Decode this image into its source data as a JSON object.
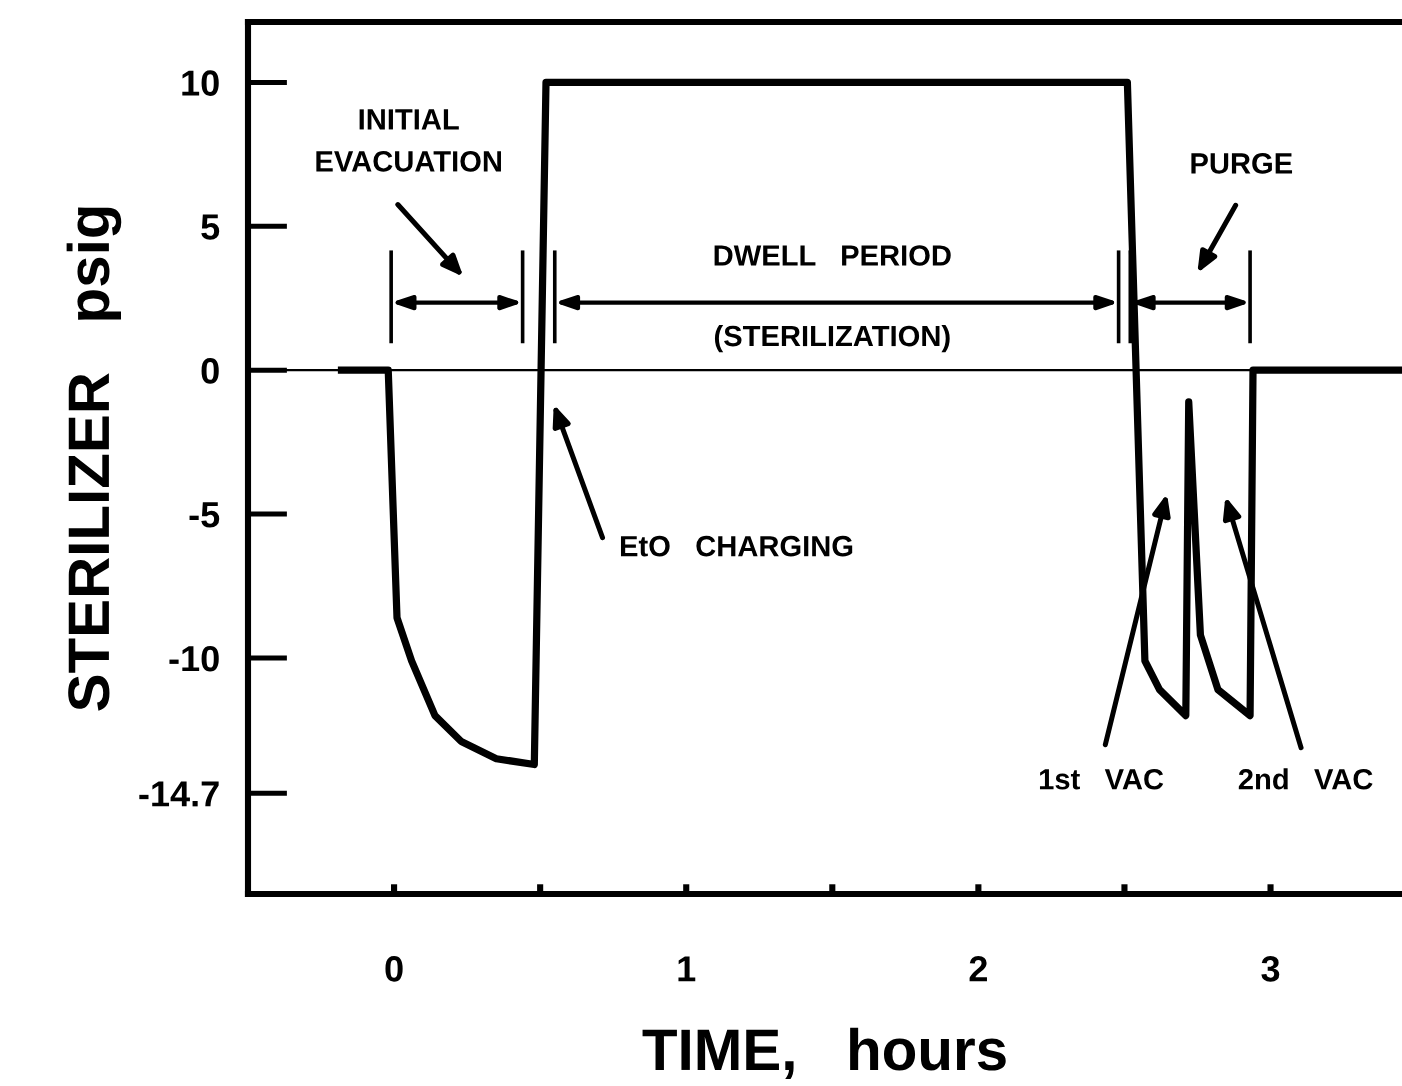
{
  "chart_data": {
    "type": "line",
    "xlabel": "TIME,   hours",
    "ylabel": "STERILIZER   psig",
    "x": [
      -0.18,
      -0.02,
      0.01,
      0.06,
      0.14,
      0.23,
      0.35,
      0.48,
      0.52,
      2.51,
      2.57,
      2.62,
      2.71,
      2.72,
      2.76,
      2.82,
      2.93,
      2.94,
      3.45
    ],
    "series": [
      {
        "color": "#000000",
        "values": [
          0,
          0,
          -8.6,
          -10.1,
          -12.0,
          -12.9,
          -13.5,
          -13.7,
          10,
          10,
          -10.1,
          -11.1,
          -12.0,
          -1.1,
          -9.2,
          -11.1,
          -12.0,
          0,
          0
        ]
      }
    ],
    "xlim": [
      -0.5,
      3.45
    ],
    "ylim": [
      -18.2,
      12.1
    ],
    "xticks": [
      0,
      {
        "value": 0.5,
        "label": null
      },
      1,
      {
        "value": 1.5,
        "label": null
      },
      2,
      {
        "value": 2.5,
        "label": null
      },
      3
    ],
    "yticks": [
      10,
      5,
      0,
      -5,
      -10,
      -14.7
    ],
    "ref_lines": [
      {
        "axis": "y",
        "value": 0,
        "label": null,
        "color": "#000000"
      }
    ],
    "annotations": [
      "INITIAL\nEVACUATION",
      "DWELL   PERIOD",
      "(STERILIZATION)",
      "EtO   CHARGING",
      "PURGE",
      "1st   VAC",
      "2nd   VAC"
    ],
    "grid": false,
    "marker": "none",
    "line_style": "solid"
  }
}
